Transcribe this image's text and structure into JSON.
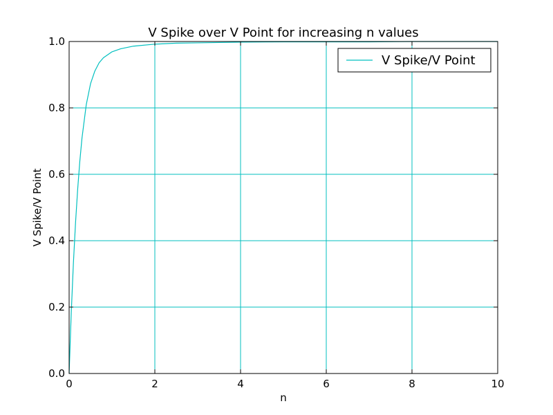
{
  "chart_data": {
    "type": "line",
    "title": "V Spike over V Point for increasing n values",
    "xlabel": "n",
    "ylabel": "V Spike/V Point",
    "xlim": [
      0,
      10
    ],
    "ylim": [
      0,
      1
    ],
    "xticks": [
      0,
      2,
      4,
      6,
      8,
      10
    ],
    "xtick_labels": [
      "0",
      "2",
      "4",
      "6",
      "8",
      "10"
    ],
    "yticks": [
      0,
      0.2,
      0.4,
      0.6,
      0.8,
      1.0
    ],
    "ytick_labels": [
      "0.0",
      "0.2",
      "0.4",
      "0.6",
      "0.8",
      "1.0"
    ],
    "grid": true,
    "grid_color": "#00bfbf",
    "legend_position": "top-right",
    "series": [
      {
        "name": "V Spike/V Point",
        "color": "#00bfbf",
        "x": [
          0,
          0.05,
          0.1,
          0.15,
          0.2,
          0.25,
          0.3,
          0.4,
          0.5,
          0.6,
          0.7,
          0.8,
          1.0,
          1.2,
          1.5,
          2,
          2.5,
          3,
          4,
          5,
          6,
          7,
          8,
          9,
          10
        ],
        "y": [
          0.0,
          0.184,
          0.333,
          0.455,
          0.556,
          0.64,
          0.709,
          0.81,
          0.873,
          0.911,
          0.936,
          0.951,
          0.969,
          0.978,
          0.986,
          0.992,
          0.995,
          0.996,
          0.998,
          0.999,
          0.999,
          0.999,
          1.0,
          1.0,
          1.0
        ]
      }
    ]
  }
}
